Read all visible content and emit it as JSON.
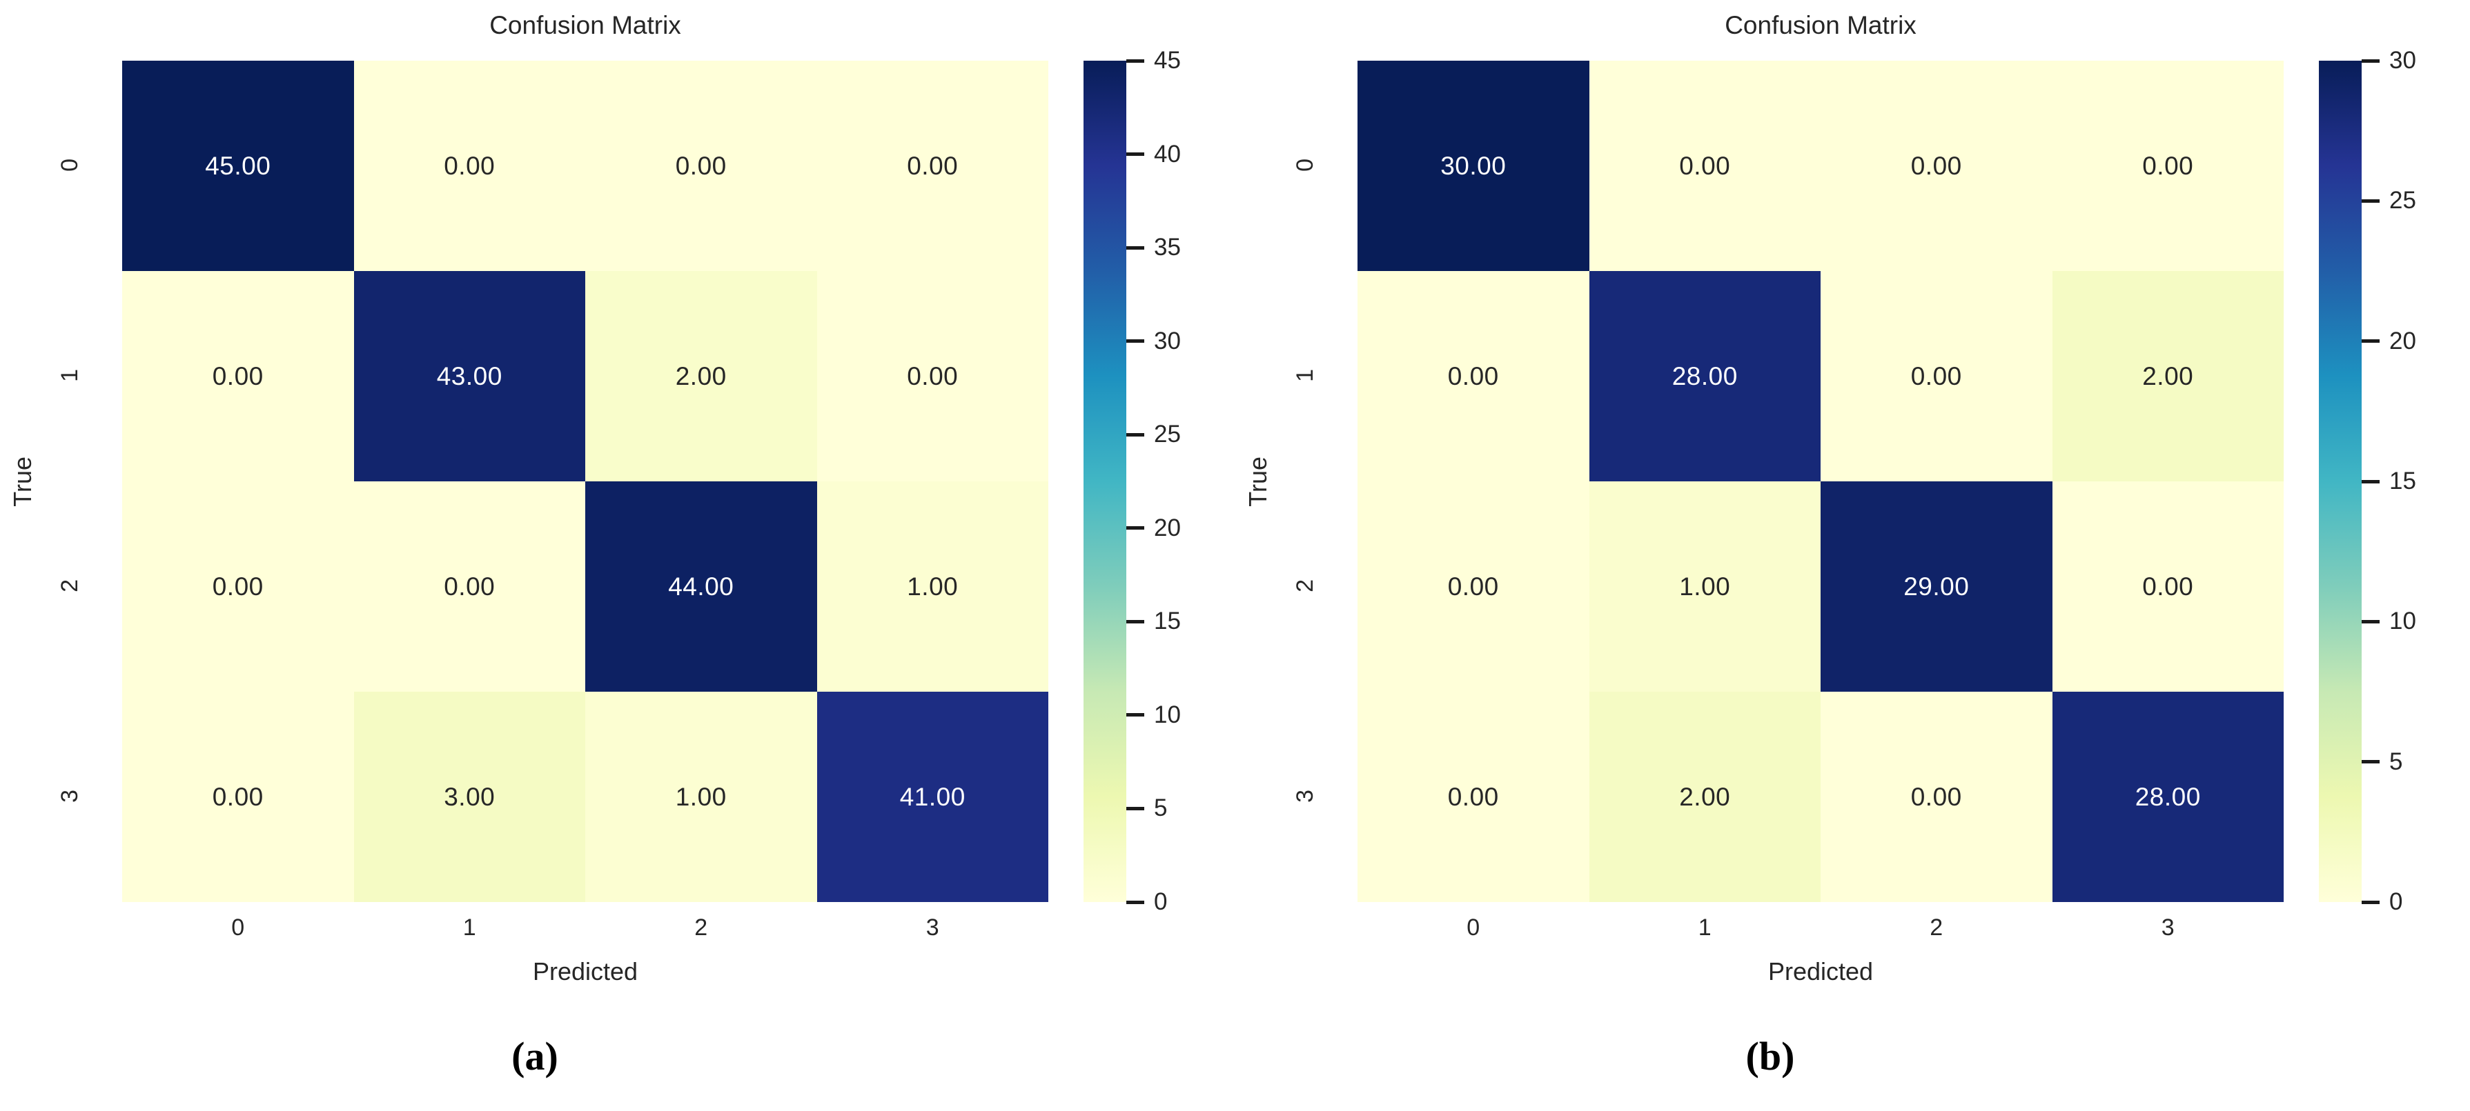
{
  "chart_data": [
    {
      "type": "heatmap",
      "id": "a",
      "title": "Confusion Matrix",
      "xlabel": "Predicted",
      "ylabel": "True",
      "x_ticklabels": [
        "0",
        "1",
        "2",
        "3"
      ],
      "y_ticklabels": [
        "0",
        "1",
        "2",
        "3"
      ],
      "values": [
        [
          45,
          0,
          0,
          0
        ],
        [
          0,
          43,
          2,
          0
        ],
        [
          0,
          0,
          44,
          1
        ],
        [
          0,
          3,
          1,
          41
        ]
      ],
      "value_format_decimals": 2,
      "vmin": 0,
      "vmax": 45,
      "colorbar_ticks": [
        0,
        5,
        10,
        15,
        20,
        25,
        30,
        35,
        40,
        45
      ],
      "colormap": "YlGnBu",
      "legend_position": "right-colorbar",
      "grid": false,
      "caption": "(a)"
    },
    {
      "type": "heatmap",
      "id": "b",
      "title": "Confusion Matrix",
      "xlabel": "Predicted",
      "ylabel": "True",
      "x_ticklabels": [
        "0",
        "1",
        "2",
        "3"
      ],
      "y_ticklabels": [
        "0",
        "1",
        "2",
        "3"
      ],
      "values": [
        [
          30,
          0,
          0,
          0
        ],
        [
          0,
          28,
          0,
          2
        ],
        [
          0,
          1,
          29,
          0
        ],
        [
          0,
          2,
          0,
          28
        ]
      ],
      "value_format_decimals": 2,
      "vmin": 0,
      "vmax": 30,
      "colorbar_ticks": [
        0,
        5,
        10,
        15,
        20,
        25,
        30
      ],
      "colormap": "YlGnBu",
      "legend_position": "right-colorbar",
      "grid": false,
      "caption": "(b)"
    }
  ],
  "colors": {
    "colormap_stops": [
      "#ffffd9",
      "#edf8b1",
      "#c7e9b4",
      "#7fcdbb",
      "#41b6c4",
      "#1d91c0",
      "#225ea8",
      "#253494",
      "#081d58"
    ],
    "text_dark": "#262626",
    "text_light": "#ffffff",
    "tick_mark": "#1a1a1a",
    "background": "#ffffff"
  }
}
